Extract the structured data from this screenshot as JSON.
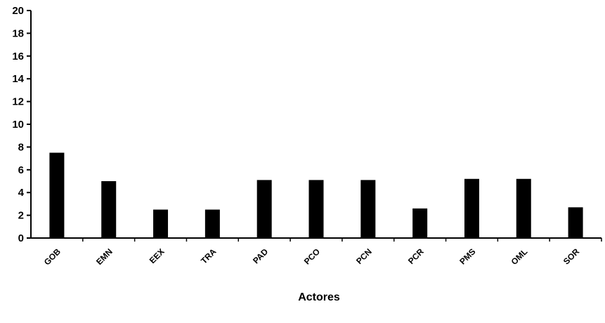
{
  "chart_data": {
    "type": "bar",
    "title": "",
    "xlabel": "Actores",
    "ylabel": "",
    "categories": [
      "GOB",
      "EMN",
      "EEX",
      "TRA",
      "PAD",
      "PCO",
      "PCN",
      "PCR",
      "PMS",
      "OML",
      "SOR"
    ],
    "values": [
      7.5,
      5.0,
      2.5,
      2.5,
      5.1,
      5.1,
      5.1,
      2.6,
      5.2,
      5.2,
      2.7
    ],
    "ylim": [
      0,
      20
    ],
    "yticks": [
      0,
      2,
      4,
      6,
      8,
      10,
      12,
      14,
      16,
      18,
      20
    ],
    "grid": false,
    "legend": "none",
    "bar_color": "#000000",
    "axis_color": "#000000"
  }
}
